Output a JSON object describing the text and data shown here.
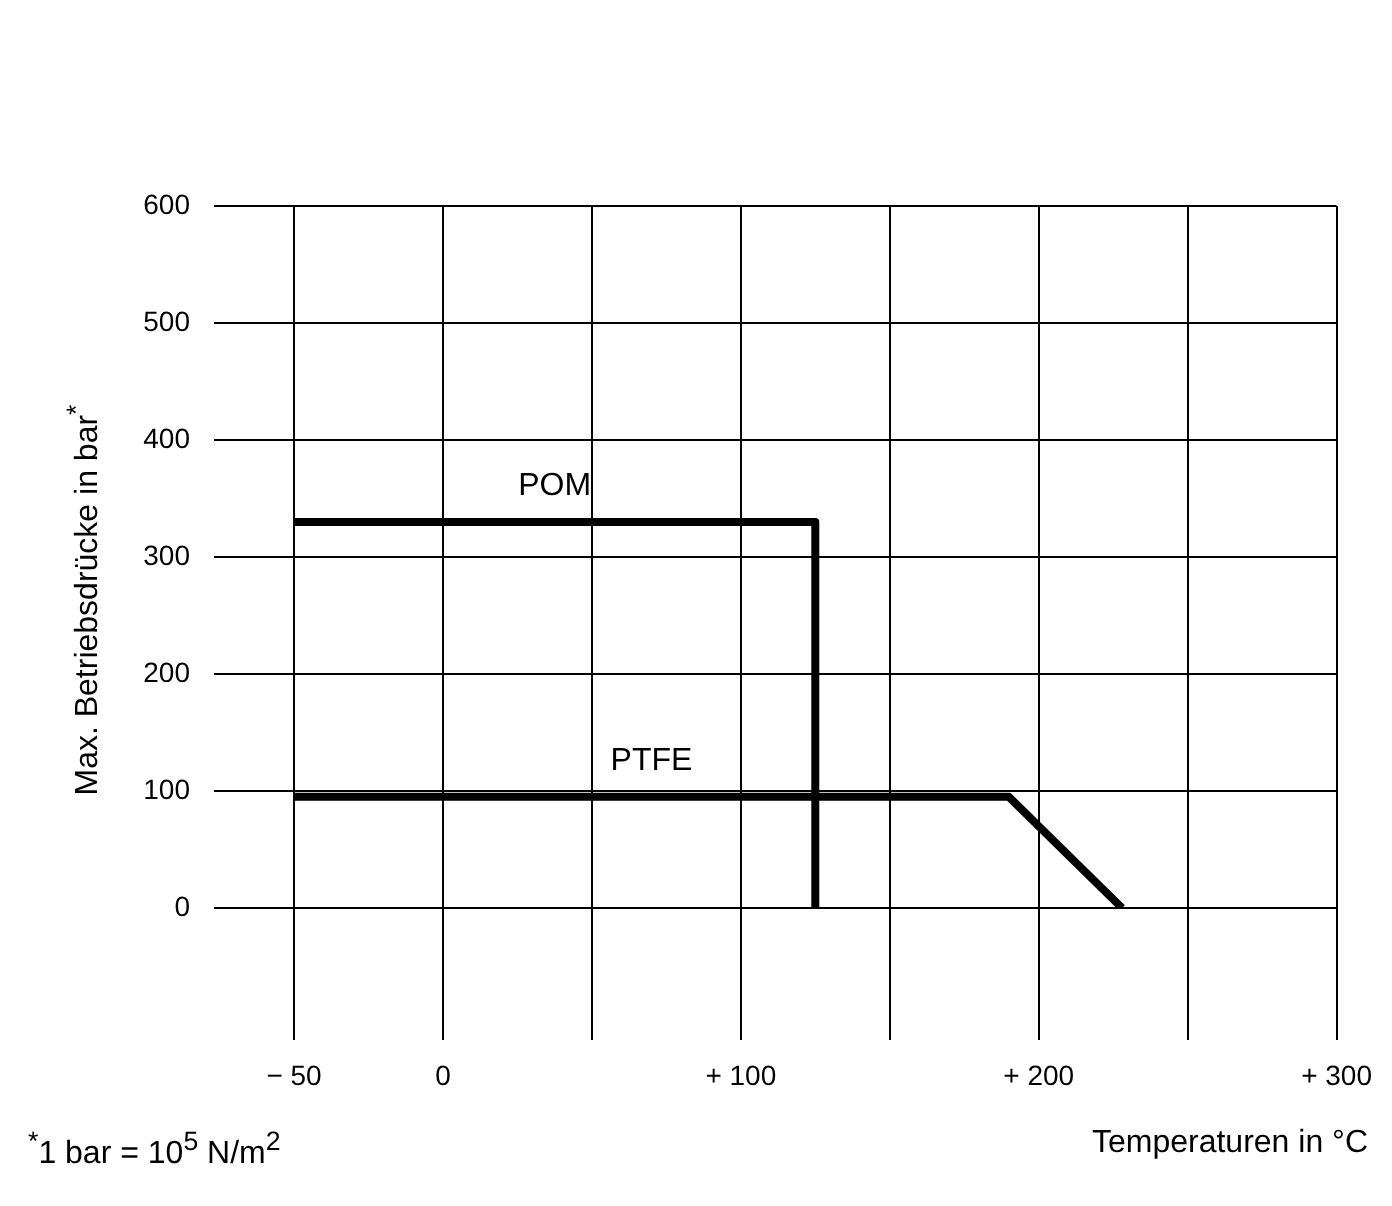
{
  "chart_data": {
    "type": "line",
    "xlabel": "Temperaturen in °C",
    "ylabel": "Max. Betriebsdrücke in bar$^{*}$",
    "annotations": [
      "$^{*}$1 bar = 10$^{5}$ N/m$^{2}$"
    ],
    "series": [
      {
        "name": "POM",
        "color": "#000000",
        "x": [
          -50,
          125,
          125
        ],
        "values": [
          330,
          330,
          0
        ]
      },
      {
        "name": "PTFE",
        "color": "#000000",
        "x": [
          -50,
          190,
          228
        ],
        "values": [
          95,
          95,
          0
        ]
      }
    ],
    "xlim": [
      -50,
      300
    ],
    "xticks": [
      {
        "value": -50,
        "label": "− 50"
      },
      0,
      {
        "value": 50,
        "label": null
      },
      {
        "value": 100,
        "label": "+ 100"
      },
      {
        "value": 150,
        "label": null
      },
      {
        "value": 200,
        "label": "+ 200"
      },
      {
        "value": 250,
        "label": null
      },
      {
        "value": 300,
        "label": "+ 300"
      }
    ],
    "ylim": [
      0,
      600
    ],
    "yticks": [
      0,
      100,
      200,
      300,
      400,
      500,
      600
    ],
    "grid": true,
    "legend": false,
    "marker": "none",
    "line_style": "solid"
  }
}
